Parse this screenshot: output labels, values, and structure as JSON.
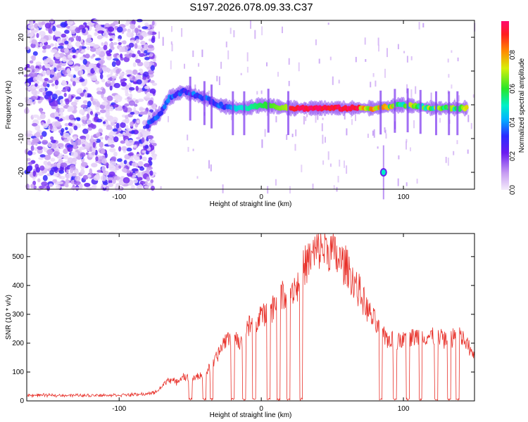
{
  "title": "S197.2026.078.09.33.C37",
  "chart_data": [
    {
      "type": "heatmap",
      "xlabel": "Height of straight line (km)",
      "ylabel": "Frequency (Hz)",
      "xlim": [
        -165,
        150
      ],
      "ylim": [
        -25,
        25
      ],
      "xticks": [
        -100,
        0,
        100
      ],
      "yticks": [
        -20,
        -10,
        0,
        10,
        20
      ],
      "colorbar": {
        "label": "Normalized spectral amplitude",
        "range": [
          0,
          1
        ],
        "ticks": [
          "0.0",
          "0.2",
          "0.4",
          "0.6",
          "0.8"
        ]
      },
      "features": [
        {
          "name": "noise",
          "x_range": [
            -165,
            -75
          ],
          "frequency_range": [
            -25,
            25
          ],
          "amplitude": 0.15
        },
        {
          "name": "main-track",
          "points": [
            [
              -80,
              -6
            ],
            [
              -70,
              -2
            ],
            [
              -65,
              2
            ],
            [
              -55,
              4
            ],
            [
              -40,
              2
            ],
            [
              -30,
              0
            ],
            [
              -20,
              -1
            ],
            [
              -10,
              -1
            ],
            [
              0,
              0
            ],
            [
              20,
              -1
            ],
            [
              40,
              -1
            ],
            [
              60,
              -1
            ],
            [
              80,
              -1
            ],
            [
              100,
              0
            ],
            [
              120,
              -1
            ],
            [
              145,
              -1
            ]
          ],
          "peak_amplitude": 1.0
        },
        {
          "name": "isolated-blob",
          "x": 86,
          "frequency": -20,
          "amplitude": 0.35
        }
      ]
    },
    {
      "type": "line",
      "xlabel": "Height of straight line (km)",
      "ylabel": "SNR (10 * v/v)",
      "xlim": [
        -165,
        150
      ],
      "ylim": [
        0,
        580
      ],
      "xticks": [
        -100,
        0,
        100
      ],
      "yticks": [
        0,
        100,
        200,
        300,
        400,
        500
      ],
      "series": [
        {
          "name": "SNR",
          "color": "#e8322b",
          "x": [
            -165,
            -150,
            -130,
            -110,
            -90,
            -80,
            -75,
            -70,
            -65,
            -60,
            -55,
            -50,
            -45,
            -40,
            -35,
            -30,
            -25,
            -20,
            -15,
            -10,
            -5,
            0,
            5,
            10,
            15,
            20,
            25,
            28,
            30,
            35,
            40,
            45,
            50,
            55,
            60,
            65,
            70,
            75,
            80,
            85,
            90,
            95,
            100,
            110,
            120,
            130,
            140,
            145,
            150
          ],
          "values": [
            20,
            20,
            20,
            20,
            22,
            25,
            30,
            50,
            80,
            65,
            90,
            75,
            85,
            100,
            120,
            170,
            220,
            240,
            200,
            260,
            280,
            300,
            320,
            350,
            380,
            400,
            410,
            420,
            480,
            510,
            540,
            550,
            530,
            500,
            480,
            430,
            380,
            320,
            280,
            230,
            220,
            210,
            220,
            230,
            230,
            220,
            230,
            200,
            150
          ]
        }
      ],
      "dropouts": [
        -50,
        -40,
        -35,
        -20,
        -12,
        -5,
        5,
        12,
        19,
        28,
        84,
        94,
        103,
        112,
        123,
        132,
        138
      ]
    }
  ]
}
